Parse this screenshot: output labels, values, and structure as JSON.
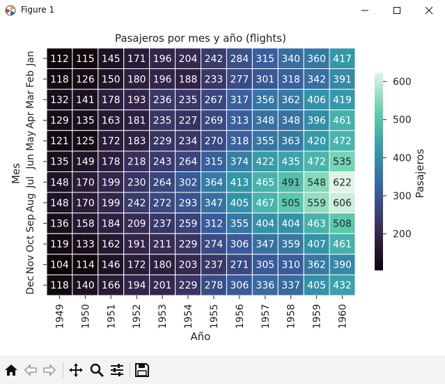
{
  "window": {
    "title": "Figure 1",
    "minimize_glyph": "—",
    "maximize_glyph": "☐",
    "close_glyph": "✕"
  },
  "toolbar": {
    "items": [
      "home-icon",
      "back-icon",
      "forward-icon",
      "pan-icon",
      "zoom-icon",
      "configure-subplots-icon",
      "save-icon"
    ]
  },
  "chart_data": {
    "type": "heatmap",
    "title": "Pasajeros por mes y año (flights)",
    "xlabel": "Año",
    "ylabel": "Mes",
    "x": [
      "1949",
      "1950",
      "1951",
      "1952",
      "1953",
      "1954",
      "1955",
      "1956",
      "1957",
      "1958",
      "1959",
      "1960"
    ],
    "y": [
      "Jan",
      "Feb",
      "Mar",
      "Apr",
      "May",
      "Jun",
      "Jul",
      "Aug",
      "Sep",
      "Oct",
      "Nov",
      "Dec"
    ],
    "values": [
      [
        112,
        115,
        145,
        171,
        196,
        204,
        242,
        284,
        315,
        340,
        360,
        417
      ],
      [
        118,
        126,
        150,
        180,
        196,
        188,
        233,
        277,
        301,
        318,
        342,
        391
      ],
      [
        132,
        141,
        178,
        193,
        236,
        235,
        267,
        317,
        356,
        362,
        406,
        419
      ],
      [
        129,
        135,
        163,
        181,
        235,
        227,
        269,
        313,
        348,
        348,
        396,
        461
      ],
      [
        121,
        125,
        172,
        183,
        229,
        234,
        270,
        318,
        355,
        363,
        420,
        472
      ],
      [
        135,
        149,
        178,
        218,
        243,
        264,
        315,
        374,
        422,
        435,
        472,
        535
      ],
      [
        148,
        170,
        199,
        230,
        264,
        302,
        364,
        413,
        465,
        491,
        548,
        622
      ],
      [
        148,
        170,
        199,
        242,
        272,
        293,
        347,
        405,
        467,
        505,
        559,
        606
      ],
      [
        136,
        158,
        184,
        209,
        237,
        259,
        312,
        355,
        404,
        404,
        463,
        508
      ],
      [
        119,
        133,
        162,
        191,
        211,
        229,
        274,
        306,
        347,
        359,
        407,
        461
      ],
      [
        104,
        114,
        146,
        172,
        180,
        203,
        237,
        271,
        305,
        310,
        362,
        390
      ],
      [
        118,
        140,
        166,
        194,
        201,
        229,
        278,
        306,
        336,
        337,
        405,
        432
      ]
    ],
    "colorbar": {
      "label": "Pasajeros",
      "range": [
        104,
        622
      ],
      "ticks": [
        200,
        300,
        400,
        500,
        600
      ],
      "colormap": "mako",
      "colors": [
        "#0b0405",
        "#382a54",
        "#395d9c",
        "#3497a9",
        "#60ceac",
        "#def5e5"
      ]
    }
  }
}
